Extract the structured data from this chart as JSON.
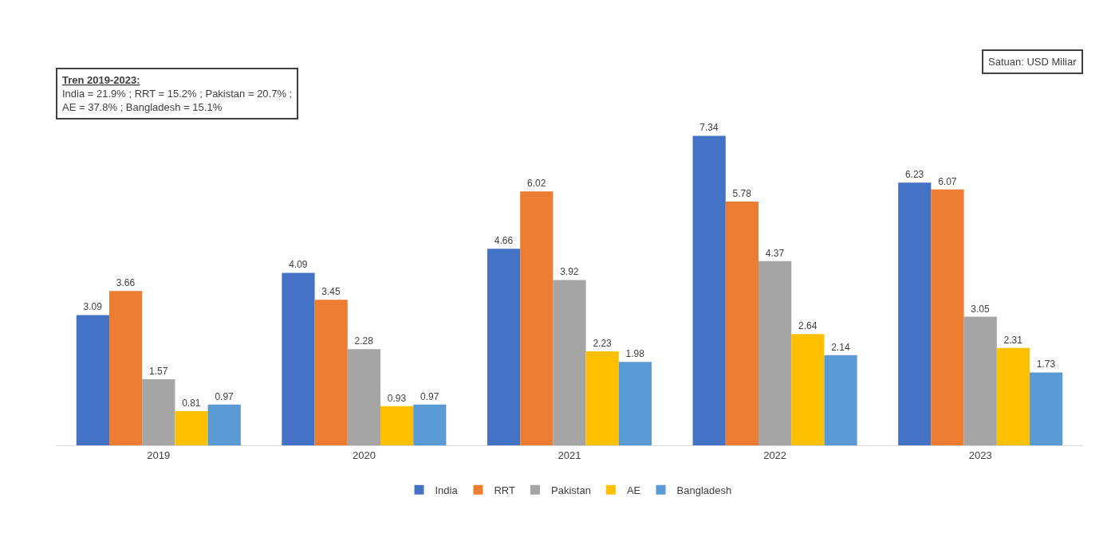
{
  "chart_data": {
    "type": "bar",
    "categories": [
      "2019",
      "2020",
      "2021",
      "2022",
      "2023"
    ],
    "series": [
      {
        "name": "India",
        "color": "#4472c4",
        "values": [
          3.09,
          4.09,
          4.66,
          7.34,
          6.23
        ]
      },
      {
        "name": "RRT",
        "color": "#ed7d31",
        "values": [
          3.66,
          3.45,
          6.02,
          5.78,
          6.07
        ]
      },
      {
        "name": "Pakistan",
        "color": "#a5a5a5",
        "values": [
          1.57,
          2.28,
          3.92,
          4.37,
          3.05
        ]
      },
      {
        "name": "AE",
        "color": "#ffc000",
        "values": [
          0.81,
          0.93,
          2.23,
          2.64,
          2.31
        ]
      },
      {
        "name": "Bangladesh",
        "color": "#5b9bd5",
        "values": [
          0.97,
          0.97,
          1.98,
          2.14,
          1.73
        ]
      }
    ],
    "data_labels": true,
    "legend": "bottom",
    "annotations": [
      "Tren 2019-2023:\nIndia = 21.9% ; RRT = 15.2% ; Pakistan = 20.7% ;\nAE = 37.8% ; Bangladesh = 15.1%",
      "Satuan: USD Miliar"
    ]
  }
}
